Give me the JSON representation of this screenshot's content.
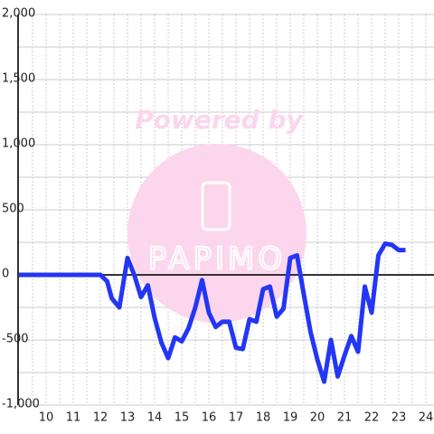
{
  "chart_data": {
    "type": "line",
    "watermark": [
      "Powered by",
      "PAPIMO"
    ],
    "x": [
      9,
      12,
      12.25,
      12.42,
      12.7,
      13,
      13.25,
      13.5,
      13.75,
      14,
      14.25,
      14.5,
      14.75,
      15,
      15.25,
      15.5,
      15.75,
      16,
      16.25,
      16.5,
      16.75,
      17,
      17.25,
      17.5,
      17.75,
      18,
      18.25,
      18.5,
      18.75,
      19,
      19.25,
      19.5,
      19.75,
      20,
      20.25,
      20.5,
      20.75,
      21,
      21.25,
      21.5,
      21.75,
      22,
      22.25,
      22.5,
      22.75,
      23,
      23.25
    ],
    "series": [
      {
        "color": "#2436f5",
        "values": [
          0,
          0,
          -50,
          -180,
          -250,
          130,
          0,
          -170,
          -80,
          -330,
          -520,
          -640,
          -480,
          -510,
          -410,
          -250,
          -40,
          -290,
          -400,
          -360,
          -360,
          -560,
          -570,
          -340,
          -360,
          -110,
          -90,
          -320,
          -260,
          130,
          150,
          -150,
          -440,
          -650,
          -820,
          -500,
          -780,
          -620,
          -470,
          -590,
          -90,
          -290,
          150,
          240,
          230,
          190,
          190
        ]
      }
    ],
    "xlim": [
      9,
      24.3
    ],
    "xticks": [
      10,
      11,
      12,
      13,
      14,
      15,
      16,
      17,
      18,
      19,
      20,
      21,
      22,
      23,
      24
    ],
    "xminor": [
      9.5,
      10.5,
      11.5,
      12.5,
      13.5,
      14.5,
      15.5,
      16.5,
      17.5,
      18.5,
      19.5,
      20.5,
      21.5,
      22.5,
      23.5
    ],
    "ylim": [
      -1000,
      2000
    ],
    "yticks": [
      {
        "value": 2000,
        "label": "2,000"
      },
      {
        "value": 1500,
        "label": "1,500"
      },
      {
        "value": 1000,
        "label": "1,000"
      },
      500,
      0,
      -500,
      {
        "value": -1000,
        "label": "-1,000"
      }
    ],
    "yminor": [
      1750,
      1250,
      750,
      250,
      -250,
      -750
    ],
    "grid": true
  }
}
